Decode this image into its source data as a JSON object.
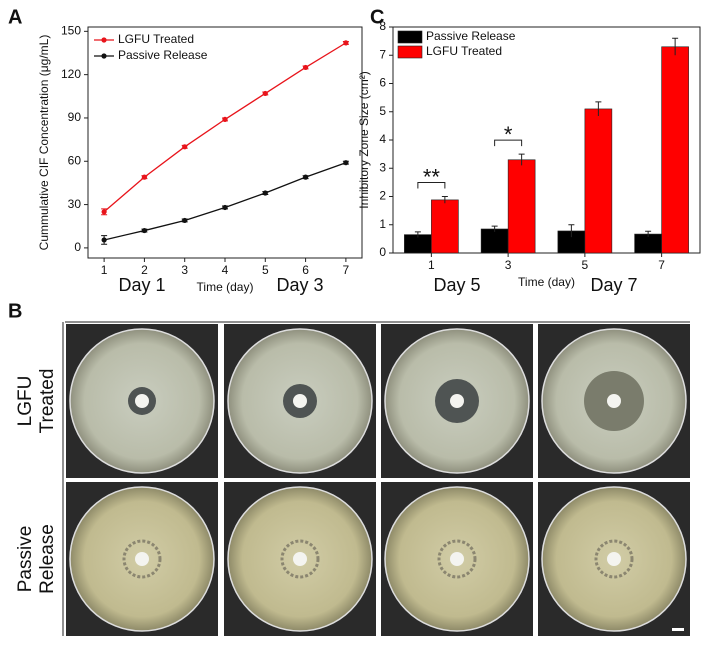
{
  "chart_data": [
    {
      "type": "line",
      "panel_label": "A",
      "x": [
        1,
        2,
        3,
        4,
        5,
        6,
        7
      ],
      "xlim": [
        0.6,
        7.4
      ],
      "xticks": [
        1,
        2,
        3,
        4,
        5,
        6,
        7
      ],
      "ylim": [
        -7,
        153
      ],
      "yticks": [
        0,
        30,
        60,
        90,
        120,
        150
      ],
      "x_label": "Time (day)",
      "y_label": "Cummulative CIF Concentration (μg/mL)",
      "legend": "upper left",
      "series": [
        {
          "name": "LGFU Treated",
          "color": "#e8141b",
          "values": [
            25,
            49,
            70,
            89,
            107,
            125,
            142
          ],
          "errors": [
            2,
            1,
            1,
            1,
            1,
            1,
            1
          ]
        },
        {
          "name": "Passive Release",
          "color": "#111111",
          "values": [
            5.5,
            12,
            19,
            28,
            38,
            49,
            59
          ],
          "errors": [
            3,
            1,
            1,
            1,
            1,
            1,
            1
          ]
        }
      ]
    },
    {
      "type": "bar",
      "panel_label": "C",
      "categories": [
        "1",
        "3",
        "5",
        "7"
      ],
      "ylim": [
        0,
        8
      ],
      "yticks": [
        0,
        1,
        2,
        3,
        4,
        5,
        6,
        7,
        8
      ],
      "x_label": "Time (day)",
      "y_label": "Inhibitory Zone Size (cm²)",
      "legend": "upper left",
      "series": [
        {
          "name": "Passive Release",
          "color": "#000000",
          "values": [
            0.65,
            0.85,
            0.78,
            0.67
          ],
          "errors": [
            0.1,
            0.1,
            0.22,
            0.1
          ]
        },
        {
          "name": "LGFU Treated",
          "color": "#ff0000",
          "values": [
            1.88,
            3.3,
            5.1,
            7.3
          ],
          "errors": [
            0.12,
            0.2,
            0.25,
            0.3
          ]
        }
      ],
      "annotations": [
        {
          "text": "**",
          "category": "1"
        },
        {
          "text": "*",
          "category": "3"
        }
      ]
    }
  ],
  "photo_panel": {
    "panel_label": "B",
    "columns": [
      "Day 1",
      "Day 3",
      "Day 5",
      "Day 7"
    ],
    "rows": [
      [
        "LGFU",
        "Treated"
      ],
      [
        "Passive",
        "Release"
      ]
    ]
  }
}
